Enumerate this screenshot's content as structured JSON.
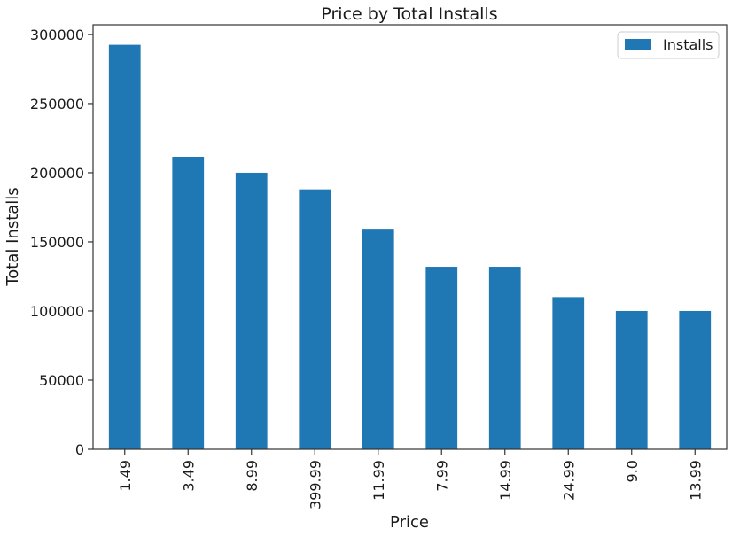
{
  "chart_data": {
    "type": "bar",
    "title": "Price by Total Installs",
    "xlabel": "Price",
    "ylabel": "Total Installs",
    "categories": [
      "1.49",
      "3.49",
      "8.99",
      "399.99",
      "11.99",
      "7.99",
      "14.99",
      "24.99",
      "9.0",
      "13.99"
    ],
    "series": [
      {
        "name": "Installs",
        "values": [
          292500,
          211500,
          200000,
          188000,
          159500,
          132000,
          132000,
          110000,
          100000,
          100000
        ]
      }
    ],
    "ylim": [
      0,
      307000
    ],
    "yticks": [
      0,
      50000,
      100000,
      150000,
      200000,
      250000,
      300000
    ],
    "bar_color": "#1f77b4",
    "legend_position": "top-right",
    "grid": false
  }
}
